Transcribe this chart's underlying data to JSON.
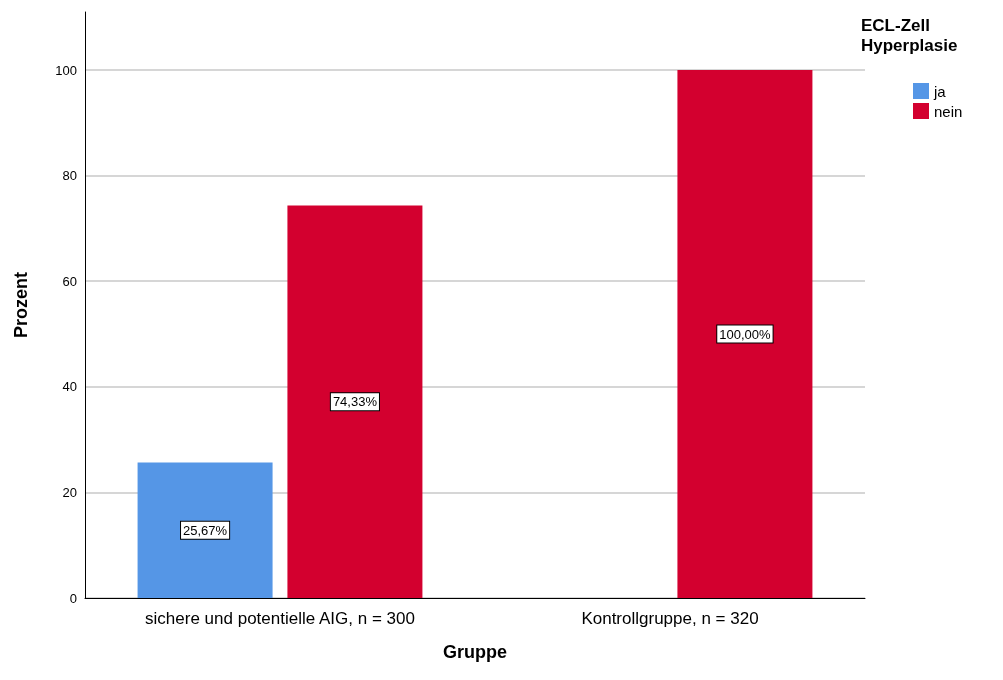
{
  "chart_data": {
    "type": "bar",
    "xlabel": "Gruppe",
    "ylabel": "Prozent",
    "legend_title": "ECL-Zell Hyperplasie",
    "categories": [
      "sichere und potentielle AIG, n = 300",
      "Kontrollgruppe, n = 320"
    ],
    "series": [
      {
        "name": "ja",
        "color": "#5596e6",
        "values": [
          25.67,
          null
        ],
        "value_labels": [
          "25,67%",
          null
        ]
      },
      {
        "name": "nein",
        "color": "#d3002f",
        "values": [
          74.33,
          100
        ],
        "value_labels": [
          "74,33%",
          "100,00%"
        ]
      }
    ],
    "ylim": [
      0,
      111
    ],
    "yticks": [
      0,
      20,
      40,
      60,
      80,
      100
    ],
    "grid": "y",
    "legend": "top right"
  }
}
